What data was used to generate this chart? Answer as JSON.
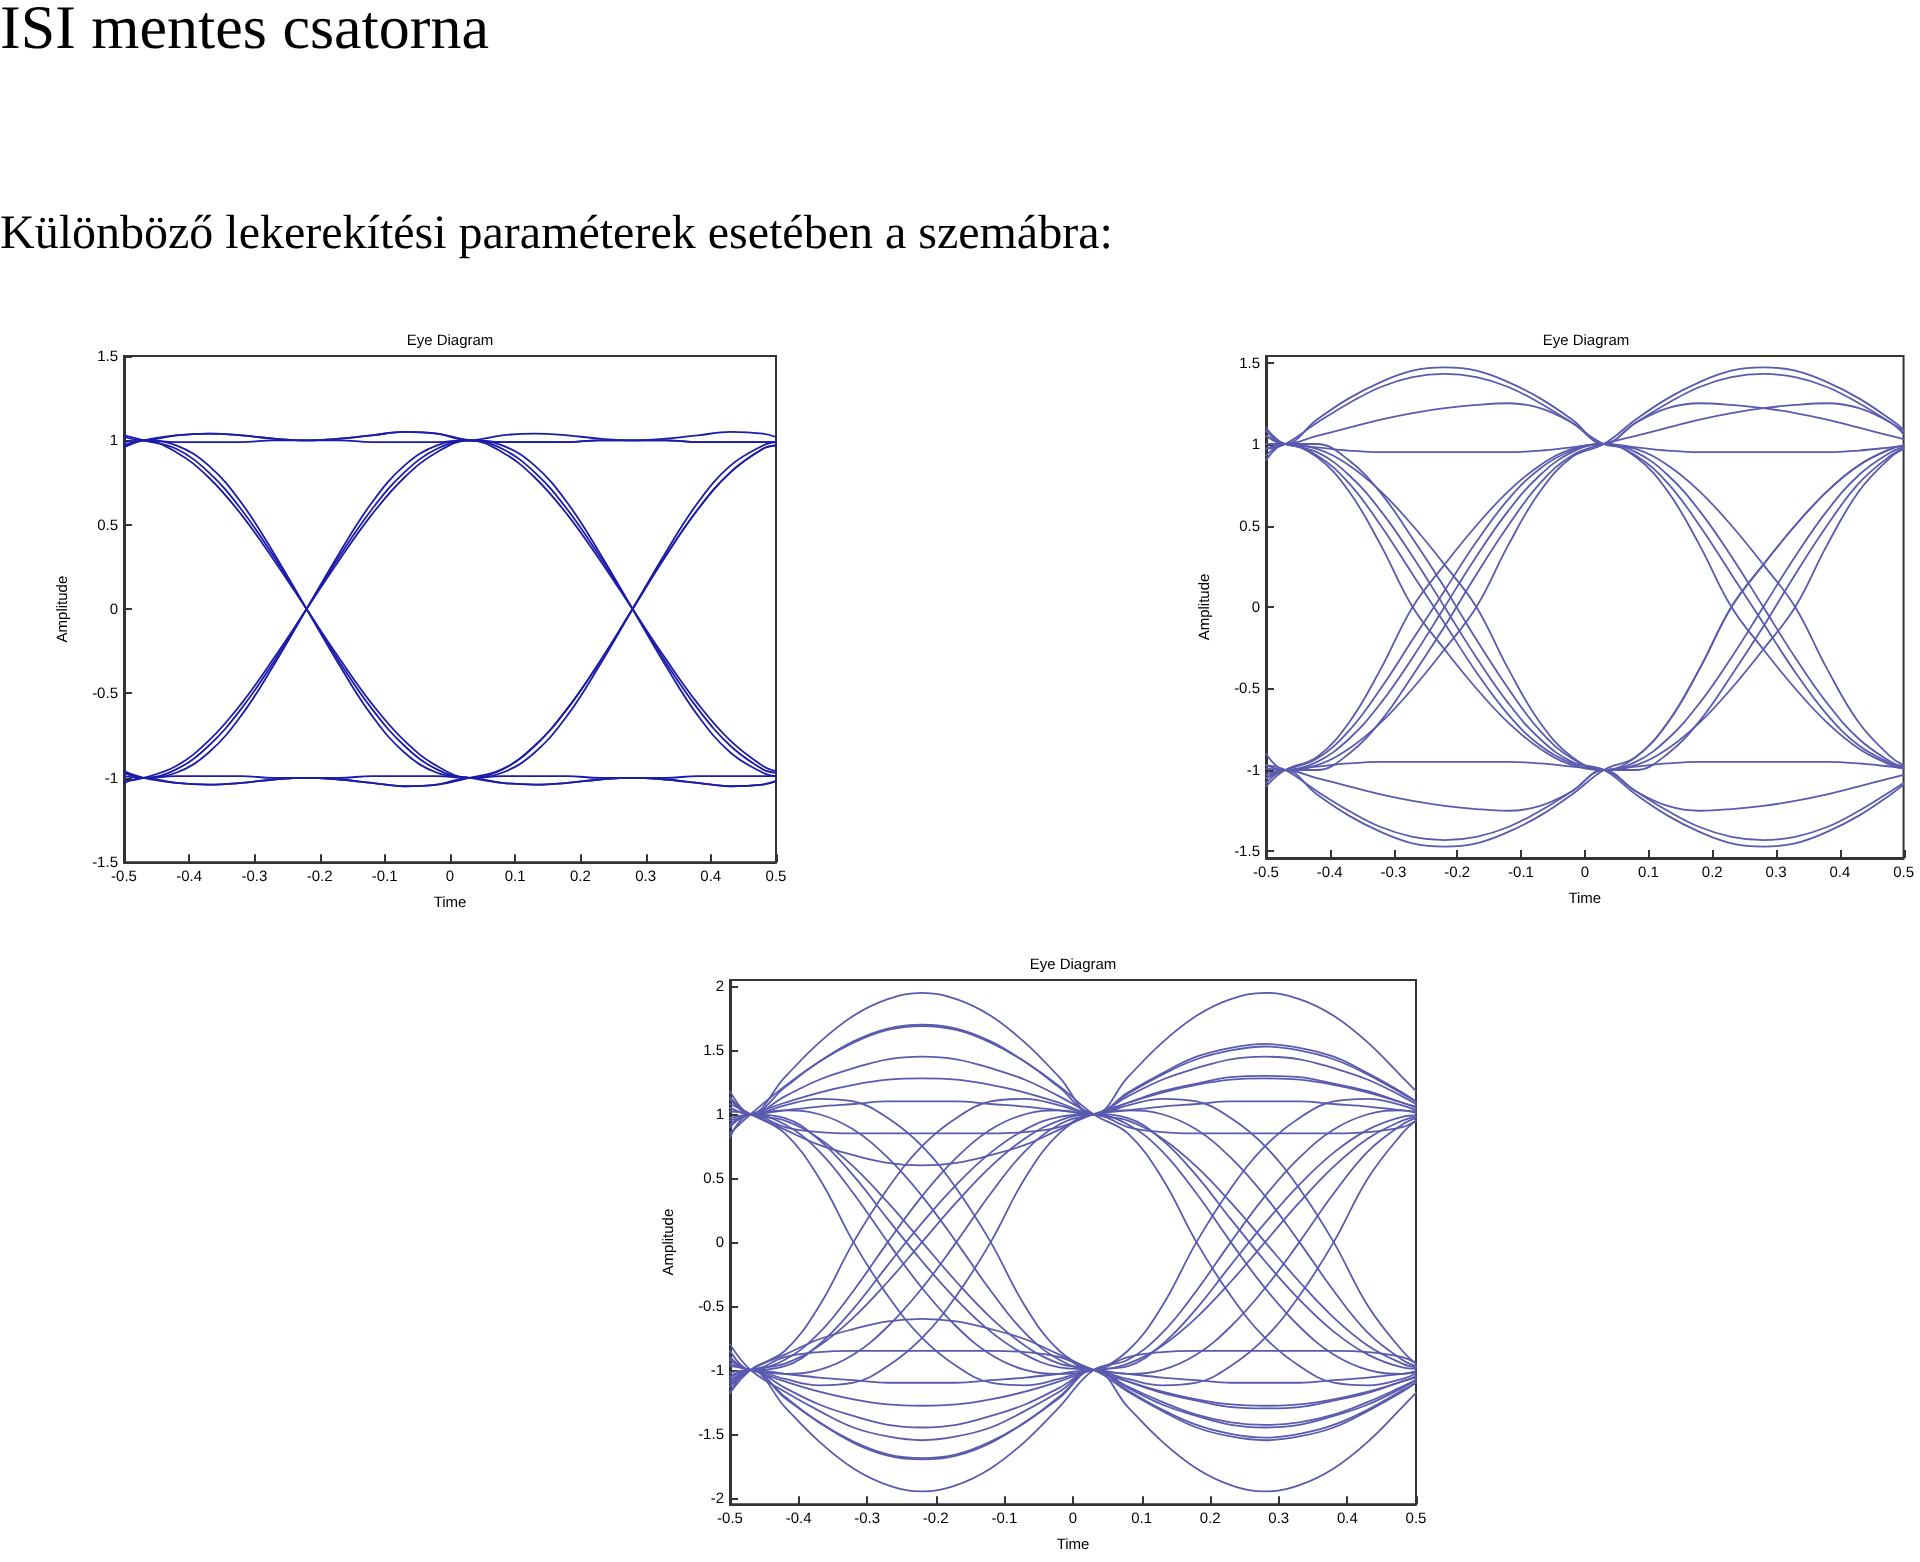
{
  "chart_data": [
    {
      "type": "other",
      "title": "ISI mentes csatorna",
      "subtitle": "Különböző lekerekítési paraméterek esetében a szemábra:"
    },
    {
      "type": "line",
      "title": "Eye Diagram",
      "xlabel": "Time",
      "ylabel": "Amplitude",
      "xlim": [
        -0.5,
        0.5
      ],
      "xticks": [
        -0.5,
        -0.4,
        -0.3,
        -0.2,
        -0.1,
        0,
        0.1,
        0.2,
        0.3,
        0.4,
        0.5
      ],
      "ylim": [
        -1.5,
        1.5
      ],
      "yticks": [
        -1.5,
        -1,
        -0.5,
        0,
        0.5,
        1,
        1.5
      ],
      "x": [
        -0.5,
        -0.47,
        -0.42,
        -0.37,
        -0.32,
        -0.27,
        -0.22,
        -0.17,
        -0.12,
        -0.07,
        -0.02,
        0.03,
        0.08,
        0.13,
        0.18,
        0.23,
        0.28,
        0.33,
        0.38,
        0.43,
        0.48,
        0.5
      ],
      "series": [
        {
          "color": "#1c1caa",
          "values": [
            1.02,
            1,
            1.03,
            1.04,
            1.03,
            1.01,
            1,
            1.01,
            1.03,
            1.05,
            1.04,
            1,
            1.03,
            1.04,
            1.03,
            1.01,
            1,
            1.01,
            1.03,
            1.05,
            1.04,
            1.02
          ]
        },
        {
          "color": "#1c1caa",
          "values": [
            0.97,
            1,
            0.99,
            0.99,
            0.99,
            1,
            1,
            1,
            0.99,
            0.99,
            0.99,
            1,
            0.95,
            0.81,
            0.59,
            0.31,
            0,
            -0.31,
            -0.59,
            -0.81,
            -0.95,
            -0.97
          ]
        },
        {
          "color": "#1c1caa",
          "values": [
            1.03,
            1,
            0.95,
            0.81,
            0.59,
            0.31,
            0,
            -0.31,
            -0.59,
            -0.81,
            -0.95,
            -1,
            -0.97,
            -0.85,
            -0.63,
            -0.33,
            0,
            0.33,
            0.63,
            0.85,
            0.97,
            0.99
          ]
        },
        {
          "color": "#1c1caa",
          "values": [
            0.96,
            1,
            0.97,
            0.85,
            0.63,
            0.33,
            0,
            -0.33,
            -0.63,
            -0.85,
            -0.97,
            -1,
            -1.03,
            -1.04,
            -1.03,
            -1.01,
            -1,
            -1.01,
            -1.03,
            -1.05,
            -1.04,
            -1.02
          ]
        },
        {
          "color": "#1c1caa",
          "values": [
            -0.97,
            -1,
            -0.95,
            -0.81,
            -0.59,
            -0.31,
            0,
            0.31,
            0.59,
            0.81,
            0.95,
            1,
            0.99,
            0.99,
            0.99,
            1,
            1,
            1,
            0.99,
            0.99,
            0.99,
            0.99
          ]
        },
        {
          "color": "#1c1caa",
          "values": [
            -1.02,
            -1,
            -0.93,
            -0.78,
            -0.56,
            -0.29,
            0,
            0.29,
            0.56,
            0.78,
            0.93,
            1,
            0.97,
            0.85,
            0.63,
            0.33,
            0,
            -0.33,
            -0.63,
            -0.85,
            -0.97,
            -0.99
          ]
        },
        {
          "color": "#1c1caa",
          "values": [
            -0.96,
            -1,
            -1.03,
            -1.04,
            -1.03,
            -1.01,
            -1,
            -1.01,
            -1.03,
            -1.05,
            -1.04,
            -1,
            -0.95,
            -0.81,
            -0.59,
            -0.31,
            0,
            0.31,
            0.59,
            0.81,
            0.95,
            0.97
          ]
        },
        {
          "color": "#1c1caa",
          "values": [
            -0.99,
            -1,
            -0.99,
            -0.99,
            -0.99,
            -1,
            -1,
            -1,
            -0.99,
            -0.99,
            -0.99,
            -1,
            -0.99,
            -0.99,
            -0.99,
            -1,
            -1,
            -1,
            -0.99,
            -0.99,
            -0.99,
            -0.99
          ]
        },
        {
          "color": "#1c1caa",
          "values": [
            0.99,
            1,
            0.93,
            0.78,
            0.56,
            0.29,
            0,
            -0.29,
            -0.56,
            -0.78,
            -0.93,
            -1,
            -0.95,
            -0.81,
            -0.59,
            -0.31,
            0,
            0.31,
            0.59,
            0.81,
            0.95,
            0.97
          ]
        },
        {
          "color": "#1c1caa",
          "values": [
            -0.97,
            -1,
            -0.97,
            -0.85,
            -0.63,
            -0.33,
            0,
            0.33,
            0.63,
            0.85,
            0.97,
            1,
            0.93,
            0.78,
            0.56,
            0.29,
            0,
            -0.29,
            -0.56,
            -0.78,
            -0.93,
            -0.96
          ]
        },
        {
          "color": "#1c1caa",
          "values": [
            0.96,
            1,
            1.03,
            1.04,
            1.03,
            1.01,
            1,
            1.01,
            1.03,
            1.05,
            1.04,
            1,
            0.99,
            0.99,
            0.99,
            1,
            1,
            1,
            0.99,
            0.99,
            0.99,
            0.99
          ]
        },
        {
          "color": "#1c1caa",
          "values": [
            -1.03,
            -1,
            -1.03,
            -1.04,
            -1.03,
            -1.01,
            -1,
            -1.01,
            -1.03,
            -1.05,
            -1.04,
            -1,
            -1.03,
            -1.04,
            -1.03,
            -1.01,
            -1,
            -1.01,
            -1.03,
            -1.05,
            -1.04,
            -1.02
          ]
        }
      ]
    },
    {
      "type": "line",
      "title": "Eye Diagram",
      "xlabel": "Time",
      "ylabel": "Amplitude",
      "xlim": [
        -0.5,
        0.5
      ],
      "xticks": [
        -0.5,
        -0.4,
        -0.3,
        -0.2,
        -0.1,
        0,
        0.1,
        0.2,
        0.3,
        0.4,
        0.5
      ],
      "ylim": [
        -1.54,
        1.54
      ],
      "yticks": [
        -1.5,
        -1,
        -0.5,
        0,
        0.5,
        1,
        1.5
      ],
      "x": [
        -0.5,
        -0.47,
        -0.42,
        -0.37,
        -0.32,
        -0.27,
        -0.22,
        -0.17,
        -0.12,
        -0.07,
        -0.02,
        0.03,
        0.08,
        0.13,
        0.18,
        0.23,
        0.28,
        0.33,
        0.38,
        0.43,
        0.48,
        0.5
      ],
      "series": [
        {
          "color": "#5a5aae",
          "values": [
            1.08,
            1,
            1.15,
            1.28,
            1.38,
            1.45,
            1.47,
            1.45,
            1.38,
            1.28,
            1.15,
            1,
            1.13,
            1.25,
            1.35,
            1.41,
            1.43,
            1.41,
            1.35,
            1.25,
            1.13,
            1.08
          ]
        },
        {
          "color": "#5a5aae",
          "values": [
            0.97,
            1,
            1.13,
            1.25,
            1.35,
            1.41,
            1.43,
            1.41,
            1.35,
            1.25,
            1.13,
            1,
            0.97,
            0.87,
            0.71,
            0.5,
            0.26,
            0,
            -0.38,
            -0.71,
            -0.92,
            -0.97
          ]
        },
        {
          "color": "#5a5aae",
          "values": [
            1.05,
            1,
            1.05,
            1.1,
            1.15,
            1.19,
            1.22,
            1.24,
            1.25,
            1.22,
            1.13,
            1,
            1.13,
            1.22,
            1.25,
            1.24,
            1.22,
            1.19,
            1.15,
            1.1,
            1.05,
            1.03
          ]
        },
        {
          "color": "#5a5aae",
          "values": [
            1.1,
            1,
            0.98,
            0.96,
            0.95,
            0.95,
            0.95,
            0.95,
            0.95,
            0.96,
            0.98,
            1,
            0.92,
            0.71,
            0.38,
            0,
            -0.26,
            -0.5,
            -0.71,
            -0.87,
            -0.97,
            -0.99
          ]
        },
        {
          "color": "#5a5aae",
          "values": [
            0.9,
            1,
            0.92,
            0.71,
            0.38,
            0,
            -0.26,
            -0.5,
            -0.71,
            -0.87,
            -0.97,
            -1,
            -0.97,
            -0.87,
            -0.71,
            -0.5,
            -0.26,
            0,
            0.38,
            0.71,
            0.92,
            0.97
          ]
        },
        {
          "color": "#5a5aae",
          "values": [
            1.05,
            1,
            0.95,
            0.81,
            0.59,
            0.31,
            0,
            -0.31,
            -0.59,
            -0.81,
            -0.95,
            -1,
            -1.15,
            -1.28,
            -1.38,
            -1.45,
            -1.47,
            -1.45,
            -1.38,
            -1.28,
            -1.15,
            -1.09
          ]
        },
        {
          "color": "#5a5aae",
          "values": [
            0.97,
            1,
            0.97,
            0.87,
            0.71,
            0.5,
            0.26,
            0,
            -0.38,
            -0.71,
            -0.92,
            -1,
            -0.95,
            -0.81,
            -0.59,
            -0.31,
            0,
            0.31,
            0.59,
            0.81,
            0.95,
            0.98
          ]
        },
        {
          "color": "#5a5aae",
          "values": [
            1,
            1,
            1,
            0.9,
            0.7,
            0.42,
            0.12,
            -0.2,
            -0.5,
            -0.76,
            -0.93,
            -1,
            -0.98,
            -0.96,
            -0.95,
            -0.95,
            -0.95,
            -0.95,
            -0.95,
            -0.96,
            -0.98,
            -0.99
          ]
        },
        {
          "color": "#5a5aae",
          "values": [
            -1.1,
            -1,
            -0.92,
            -0.71,
            -0.38,
            0,
            0.26,
            0.5,
            0.71,
            0.87,
            0.97,
            1,
            0.98,
            0.96,
            0.95,
            0.95,
            0.95,
            0.95,
            0.95,
            0.96,
            0.98,
            0.99
          ]
        },
        {
          "color": "#5a5aae",
          "values": [
            -0.9,
            -1,
            -0.95,
            -0.81,
            -0.59,
            -0.31,
            0,
            0.31,
            0.59,
            0.81,
            0.95,
            1,
            0.95,
            0.81,
            0.59,
            0.31,
            0,
            -0.31,
            -0.59,
            -0.81,
            -0.95,
            -0.98
          ]
        },
        {
          "color": "#5a5aae",
          "values": [
            -0.97,
            -1,
            -0.97,
            -0.87,
            -0.71,
            -0.5,
            -0.26,
            0,
            0.38,
            0.71,
            0.92,
            1,
            1.15,
            1.28,
            1.38,
            1.45,
            1.47,
            1.45,
            1.38,
            1.28,
            1.15,
            1.09
          ]
        },
        {
          "color": "#5a5aae",
          "values": [
            -1.05,
            -1,
            -0.93,
            -0.76,
            -0.5,
            -0.2,
            0.1,
            0.4,
            0.66,
            0.85,
            0.96,
            1,
            0.93,
            0.76,
            0.5,
            0.2,
            -0.1,
            -0.4,
            -0.66,
            -0.85,
            -0.96,
            -0.99
          ]
        },
        {
          "color": "#5a5aae",
          "values": [
            -1.08,
            -1,
            -1.15,
            -1.28,
            -1.38,
            -1.45,
            -1.47,
            -1.45,
            -1.38,
            -1.28,
            -1.15,
            -1,
            -0.92,
            -0.71,
            -0.38,
            0,
            0.26,
            0.5,
            0.71,
            0.87,
            0.97,
            0.99
          ]
        },
        {
          "color": "#5a5aae",
          "values": [
            -0.97,
            -1,
            -1.13,
            -1.25,
            -1.35,
            -1.41,
            -1.43,
            -1.41,
            -1.35,
            -1.25,
            -1.13,
            -1,
            -1.13,
            -1.22,
            -1.25,
            -1.24,
            -1.22,
            -1.19,
            -1.15,
            -1.1,
            -1.05,
            -1.03
          ]
        },
        {
          "color": "#5a5aae",
          "values": [
            -1.05,
            -1,
            -1.05,
            -1.1,
            -1.15,
            -1.19,
            -1.22,
            -1.24,
            -1.25,
            -1.22,
            -1.13,
            -1,
            -1,
            -0.9,
            -0.7,
            -0.42,
            -0.12,
            0.2,
            0.5,
            0.76,
            0.93,
            0.97
          ]
        },
        {
          "color": "#5a5aae",
          "values": [
            -0.99,
            -1,
            -0.98,
            -0.96,
            -0.95,
            -0.95,
            -0.95,
            -0.95,
            -0.95,
            -0.96,
            -0.98,
            -1,
            -1.13,
            -1.25,
            -1.35,
            -1.41,
            -1.43,
            -1.41,
            -1.35,
            -1.25,
            -1.13,
            -1.08
          ]
        },
        {
          "color": "#5a5aae",
          "values": [
            0.93,
            1,
            0.93,
            0.76,
            0.5,
            0.2,
            -0.1,
            -0.4,
            -0.66,
            -0.85,
            -0.96,
            -1,
            -0.92,
            -0.71,
            -0.38,
            0,
            0.26,
            0.5,
            0.71,
            0.87,
            0.97,
            0.99
          ]
        },
        {
          "color": "#5a5aae",
          "values": [
            -1.03,
            -1,
            -1,
            -0.9,
            -0.7,
            -0.42,
            -0.12,
            0.2,
            0.5,
            0.76,
            0.93,
            1,
            1.05,
            1.1,
            1.15,
            1.19,
            1.22,
            1.24,
            1.25,
            1.22,
            1.13,
            1.06
          ]
        }
      ]
    },
    {
      "type": "line",
      "title": "Eye Diagram",
      "xlabel": "Time",
      "ylabel": "Amplitude",
      "xlim": [
        -0.5,
        0.5
      ],
      "xticks": [
        -0.5,
        -0.4,
        -0.3,
        -0.2,
        -0.1,
        0,
        0.1,
        0.2,
        0.3,
        0.4,
        0.5
      ],
      "ylim": [
        -2.05,
        2.05
      ],
      "yticks": [
        -2,
        -1.5,
        -1,
        -0.5,
        0,
        0.5,
        1,
        1.5,
        2
      ],
      "x": [
        -0.5,
        -0.47,
        -0.42,
        -0.37,
        -0.32,
        -0.27,
        -0.22,
        -0.17,
        -0.12,
        -0.07,
        -0.02,
        0.03,
        0.08,
        0.13,
        0.18,
        0.23,
        0.28,
        0.33,
        0.38,
        0.43,
        0.48,
        0.5
      ],
      "series": [
        {
          "color": "#5a5aae",
          "values": [
            1.18,
            1,
            1.29,
            1.56,
            1.77,
            1.9,
            1.95,
            1.9,
            1.77,
            1.56,
            1.29,
            1,
            1.14,
            1.27,
            1.36,
            1.43,
            1.45,
            1.43,
            1.36,
            1.27,
            1.14,
            1.08
          ]
        },
        {
          "color": "#5a5aae",
          "values": [
            0.85,
            1,
            1.22,
            1.41,
            1.57,
            1.67,
            1.7,
            1.67,
            1.57,
            1.41,
            1.22,
            1,
            0.85,
            0.5,
            0,
            -0.42,
            -0.75,
            -0.97,
            -1.1,
            -1.12,
            -1.07,
            -1.03
          ]
        },
        {
          "color": "#5a5aae",
          "values": [
            1.13,
            1,
            1.21,
            1.41,
            1.56,
            1.66,
            1.69,
            1.66,
            1.56,
            1.41,
            1.21,
            1,
            1.16,
            1.31,
            1.43,
            1.5,
            1.53,
            1.5,
            1.43,
            1.31,
            1.16,
            1.1
          ]
        },
        {
          "color": "#5a5aae",
          "values": [
            1.05,
            1,
            1.14,
            1.27,
            1.36,
            1.43,
            1.45,
            1.43,
            1.36,
            1.27,
            1.14,
            1,
            0.95,
            0.81,
            0.59,
            0.31,
            0,
            -0.31,
            -0.59,
            -0.81,
            -0.95,
            -0.98
          ]
        },
        {
          "color": "#5a5aae",
          "values": [
            0.95,
            1,
            1.09,
            1.17,
            1.23,
            1.27,
            1.28,
            1.27,
            1.23,
            1.17,
            1.09,
            1,
            1.29,
            1.56,
            1.77,
            1.9,
            1.95,
            1.9,
            1.77,
            1.56,
            1.29,
            1.18
          ]
        },
        {
          "color": "#5a5aae",
          "values": [
            1.12,
            1,
            1.03,
            1.06,
            1.08,
            1.1,
            1.1,
            1.1,
            1.08,
            1.06,
            1.03,
            1,
            1.07,
            1.12,
            1.1,
            0.97,
            0.75,
            0.42,
            0,
            -0.5,
            -0.85,
            -0.95
          ]
        },
        {
          "color": "#5a5aae",
          "values": [
            0.9,
            1,
            0.9,
            0.86,
            0.85,
            0.85,
            0.85,
            0.85,
            0.85,
            0.86,
            0.9,
            1,
            1.09,
            1.18,
            1.24,
            1.29,
            1.3,
            1.29,
            1.24,
            1.18,
            1.09,
            1.06
          ]
        },
        {
          "color": "#5a5aae",
          "values": [
            1.02,
            1,
            0.88,
            0.76,
            0.68,
            0.62,
            0.6,
            0.62,
            0.68,
            0.76,
            0.88,
            1,
            0.97,
            0.8,
            0.52,
            0.18,
            -0.15,
            -0.45,
            -0.7,
            -0.88,
            -0.98,
            -0.99
          ]
        },
        {
          "color": "#5a5aae",
          "values": [
            -1.18,
            -1,
            -0.85,
            -0.5,
            0,
            0.42,
            0.75,
            0.97,
            1.1,
            1.12,
            1.07,
            1,
            1.17,
            1.32,
            1.45,
            1.52,
            1.55,
            1.52,
            1.45,
            1.32,
            1.17,
            1.1
          ]
        },
        {
          "color": "#5a5aae",
          "values": [
            -0.85,
            -1,
            -0.92,
            -0.71,
            -0.38,
            0,
            0.36,
            0.66,
            0.88,
            1,
            1.03,
            1,
            1.09,
            1.17,
            1.23,
            1.27,
            1.28,
            1.27,
            1.23,
            1.17,
            1.09,
            1.05
          ]
        },
        {
          "color": "#5a5aae",
          "values": [
            -1.08,
            -1,
            -0.95,
            -0.81,
            -0.59,
            -0.31,
            0,
            0.31,
            0.59,
            0.81,
            0.95,
            1,
            0.92,
            0.71,
            0.38,
            0,
            -0.36,
            -0.66,
            -0.88,
            -1,
            -1.03,
            -1.01
          ]
        },
        {
          "color": "#5a5aae",
          "values": [
            -0.95,
            -1,
            -1.03,
            -1,
            -0.88,
            -0.66,
            -0.36,
            0,
            0.38,
            0.71,
            0.92,
            1,
            1.03,
            1.06,
            1.08,
            1.1,
            1.1,
            1.1,
            1.08,
            1.06,
            1.03,
            1.02
          ]
        },
        {
          "color": "#5a5aae",
          "values": [
            -1.13,
            -1,
            -1.07,
            -1.12,
            -1.1,
            -0.97,
            -0.75,
            -0.42,
            0,
            0.5,
            0.85,
            1,
            1.03,
            1,
            0.88,
            0.66,
            0.36,
            0,
            -0.38,
            -0.71,
            -0.92,
            -0.97
          ]
        },
        {
          "color": "#5a5aae",
          "values": [
            -0.9,
            -1,
            -0.97,
            -0.8,
            -0.52,
            -0.18,
            0.15,
            0.45,
            0.7,
            0.88,
            0.98,
            1,
            0.9,
            0.86,
            0.85,
            0.85,
            0.85,
            0.85,
            0.85,
            0.86,
            0.9,
            0.95
          ]
        },
        {
          "color": "#5a5aae",
          "values": [
            1.08,
            1,
            0.85,
            0.5,
            0,
            -0.42,
            -0.75,
            -0.97,
            -1.1,
            -1.12,
            -1.07,
            -1,
            -1.29,
            -1.56,
            -1.77,
            -1.9,
            -1.95,
            -1.9,
            -1.77,
            -1.56,
            -1.29,
            -1.18
          ]
        },
        {
          "color": "#5a5aae",
          "values": [
            0.92,
            1,
            0.92,
            0.71,
            0.38,
            0,
            -0.36,
            -0.66,
            -0.88,
            -1,
            -1.03,
            -1,
            -0.85,
            -0.5,
            0,
            0.42,
            0.75,
            0.97,
            1.1,
            1.12,
            1.07,
            1.03
          ]
        },
        {
          "color": "#5a5aae",
          "values": [
            1.13,
            1,
            0.95,
            0.81,
            0.59,
            0.31,
            0,
            -0.31,
            -0.59,
            -0.81,
            -0.95,
            -1,
            -1.17,
            -1.32,
            -1.45,
            -1.52,
            -1.55,
            -1.52,
            -1.45,
            -1.32,
            -1.17,
            -1.1
          ]
        },
        {
          "color": "#5a5aae",
          "values": [
            0.97,
            1,
            1.03,
            1,
            0.88,
            0.66,
            0.36,
            0,
            -0.38,
            -0.71,
            -0.92,
            -1,
            -0.95,
            -0.81,
            -0.59,
            -0.31,
            0,
            0.31,
            0.59,
            0.81,
            0.95,
            0.98
          ]
        },
        {
          "color": "#5a5aae",
          "values": [
            1.05,
            1,
            1.07,
            1.12,
            1.1,
            0.97,
            0.75,
            0.42,
            0,
            -0.5,
            -0.85,
            -1,
            -1.09,
            -1.18,
            -1.24,
            -1.29,
            -1.3,
            -1.29,
            -1.24,
            -1.18,
            -1.09,
            -1.06
          ]
        },
        {
          "color": "#5a5aae",
          "values": [
            0.82,
            1,
            0.97,
            0.8,
            0.52,
            0.18,
            -0.15,
            -0.45,
            -0.7,
            -0.88,
            -0.98,
            -1,
            -1.07,
            -1.12,
            -1.1,
            -0.97,
            -0.75,
            -0.42,
            0,
            0.5,
            0.85,
            0.95
          ]
        },
        {
          "color": "#5a5aae",
          "values": [
            -1.1,
            -1,
            -1.29,
            -1.56,
            -1.77,
            -1.9,
            -1.95,
            -1.9,
            -1.77,
            -1.56,
            -1.29,
            -1,
            -0.92,
            -0.71,
            -0.38,
            0,
            0.36,
            0.66,
            0.88,
            1,
            1.03,
            1.01
          ]
        },
        {
          "color": "#5a5aae",
          "values": [
            -1.02,
            -1,
            -1.22,
            -1.41,
            -1.57,
            -1.67,
            -1.7,
            -1.67,
            -1.57,
            -1.41,
            -1.22,
            -1,
            -1.16,
            -1.31,
            -1.43,
            -1.5,
            -1.53,
            -1.5,
            -1.43,
            -1.31,
            -1.16,
            -1.1
          ]
        },
        {
          "color": "#5a5aae",
          "values": [
            -0.8,
            -1,
            -1.17,
            -1.32,
            -1.45,
            -1.52,
            -1.55,
            -1.52,
            -1.45,
            -1.32,
            -1.17,
            -1,
            -1.03,
            -1,
            -0.88,
            -0.66,
            -0.36,
            0,
            0.38,
            0.71,
            0.92,
            0.97
          ]
        },
        {
          "color": "#5a5aae",
          "values": [
            -1.18,
            -1,
            -1.14,
            -1.27,
            -1.36,
            -1.43,
            -1.45,
            -1.43,
            -1.36,
            -1.27,
            -1.14,
            -1,
            -1.14,
            -1.27,
            -1.36,
            -1.43,
            -1.45,
            -1.43,
            -1.36,
            -1.27,
            -1.14,
            -1.08
          ]
        },
        {
          "color": "#5a5aae",
          "values": [
            -0.97,
            -1,
            -1.09,
            -1.17,
            -1.23,
            -1.27,
            -1.28,
            -1.27,
            -1.23,
            -1.17,
            -1.09,
            -1,
            -0.97,
            -0.8,
            -0.52,
            -0.18,
            0.15,
            0.45,
            0.7,
            0.88,
            0.98,
            0.99
          ]
        },
        {
          "color": "#5a5aae",
          "values": [
            -1.05,
            -1,
            -1.03,
            -1.06,
            -1.08,
            -1.1,
            -1.1,
            -1.1,
            -1.08,
            -1.06,
            -1.03,
            -1,
            -1.09,
            -1.17,
            -1.23,
            -1.27,
            -1.28,
            -1.27,
            -1.23,
            -1.17,
            -1.09,
            -1.05
          ]
        },
        {
          "color": "#5a5aae",
          "values": [
            -0.92,
            -1,
            -0.9,
            -0.86,
            -0.85,
            -0.85,
            -0.85,
            -0.85,
            -0.85,
            -0.86,
            -0.9,
            -1,
            -1.03,
            -1.06,
            -1.08,
            -1.1,
            -1.1,
            -1.1,
            -1.08,
            -1.06,
            -1.03,
            -1.02
          ]
        },
        {
          "color": "#5a5aae",
          "values": [
            -1.13,
            -1,
            -0.88,
            -0.76,
            -0.68,
            -0.62,
            -0.6,
            -0.62,
            -0.68,
            -0.76,
            -0.88,
            -1,
            -0.9,
            -0.86,
            -0.85,
            -0.85,
            -0.85,
            -0.85,
            -0.85,
            -0.86,
            -0.9,
            -0.95
          ]
        },
        {
          "color": "#5a5aae",
          "values": [
            -1.06,
            -1,
            -1.21,
            -1.41,
            -1.56,
            -1.66,
            -1.69,
            -1.66,
            -1.56,
            -1.41,
            -1.21,
            -1,
            -1.13,
            -1.25,
            -1.35,
            -1.41,
            -1.43,
            -1.41,
            -1.35,
            -1.25,
            -1.13,
            -1.08
          ]
        }
      ]
    }
  ]
}
